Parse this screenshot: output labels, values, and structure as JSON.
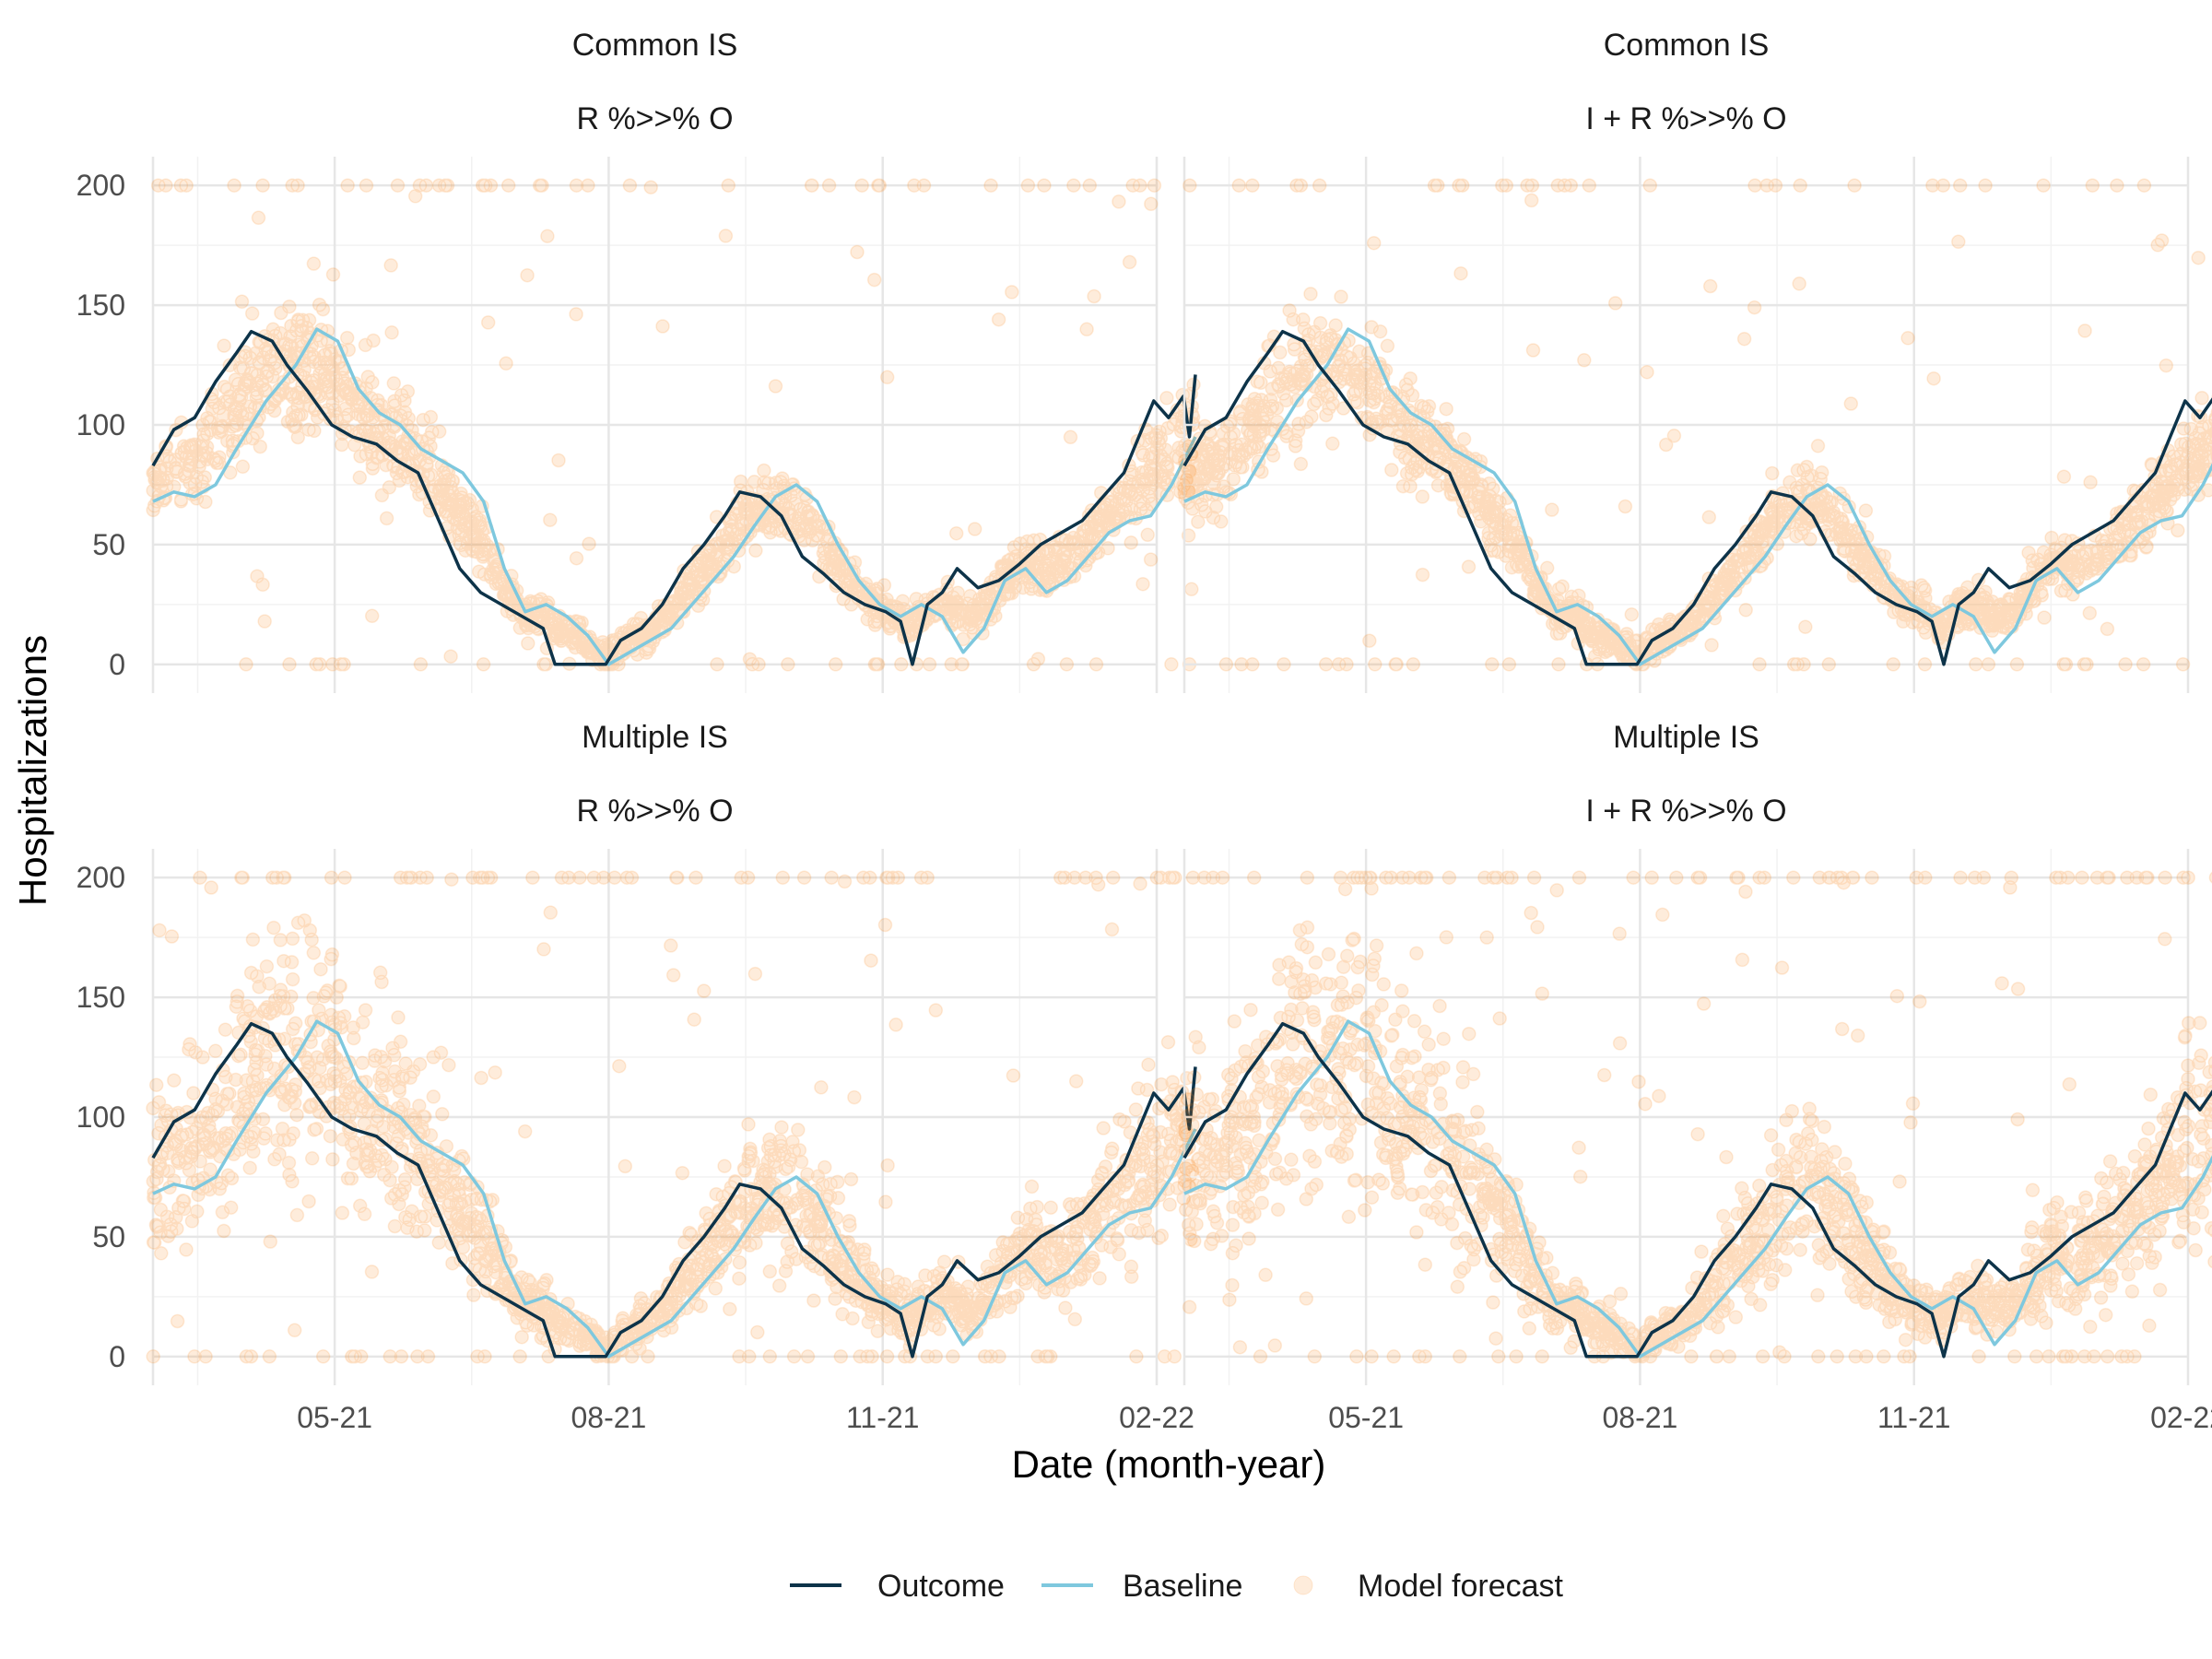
{
  "chart_data": {
    "type": "line",
    "x_axis": {
      "label": "Date (month-year)",
      "range": [
        "2021-03-01",
        "2022-02-01"
      ],
      "ticks": [
        {
          "date": "2021-05-01",
          "label": "05-21"
        },
        {
          "date": "2021-08-01",
          "label": "08-21"
        },
        {
          "date": "2021-11-01",
          "label": "11-21"
        },
        {
          "date": "2022-02-01",
          "label": "02-22"
        }
      ]
    },
    "y_axis": {
      "label": "Hospitalizations",
      "range": [
        -12,
        212
      ],
      "ticks": [
        0,
        50,
        100,
        150,
        200
      ]
    },
    "grid": true,
    "legend": {
      "position": "bottom",
      "items": [
        {
          "label": "Outcome",
          "kind": "line",
          "color": "#0d3349"
        },
        {
          "label": "Baseline",
          "kind": "line",
          "color": "#7ec8de"
        },
        {
          "label": "Model forecast",
          "kind": "point",
          "color": "#f5820b"
        }
      ]
    },
    "panels": [
      {
        "row": 0,
        "col": 0,
        "title_line1": "Common IS",
        "title_line2": "R %>>% O",
        "variant": "common_r"
      },
      {
        "row": 0,
        "col": 1,
        "title_line1": "Common IS",
        "title_line2": "I + R %>>% O",
        "variant": "common_ir"
      },
      {
        "row": 1,
        "col": 0,
        "title_line1": "Multiple IS",
        "title_line2": "R %>>% O",
        "variant": "multiple_r"
      },
      {
        "row": 1,
        "col": 1,
        "title_line1": "Multiple IS",
        "title_line2": "I + R %>>% O",
        "variant": "multiple_ir"
      }
    ],
    "series": [
      {
        "name": "Outcome",
        "color": "#0d3349",
        "points": [
          [
            "2021-03-01",
            83
          ],
          [
            "2021-03-08",
            98
          ],
          [
            "2021-03-15",
            103
          ],
          [
            "2021-03-22",
            118
          ],
          [
            "2021-03-29",
            130
          ],
          [
            "2021-04-03",
            139
          ],
          [
            "2021-04-10",
            135
          ],
          [
            "2021-04-15",
            125
          ],
          [
            "2021-04-22",
            114
          ],
          [
            "2021-04-30",
            100
          ],
          [
            "2021-05-07",
            95
          ],
          [
            "2021-05-15",
            92
          ],
          [
            "2021-05-22",
            85
          ],
          [
            "2021-05-29",
            80
          ],
          [
            "2021-06-05",
            60
          ],
          [
            "2021-06-12",
            40
          ],
          [
            "2021-06-19",
            30
          ],
          [
            "2021-06-26",
            25
          ],
          [
            "2021-07-03",
            20
          ],
          [
            "2021-07-10",
            15
          ],
          [
            "2021-07-14",
            0
          ],
          [
            "2021-07-20",
            0
          ],
          [
            "2021-07-31",
            0
          ],
          [
            "2021-08-05",
            10
          ],
          [
            "2021-08-12",
            15
          ],
          [
            "2021-08-19",
            25
          ],
          [
            "2021-08-26",
            40
          ],
          [
            "2021-09-02",
            50
          ],
          [
            "2021-09-09",
            62
          ],
          [
            "2021-09-14",
            72
          ],
          [
            "2021-09-21",
            70
          ],
          [
            "2021-09-28",
            62
          ],
          [
            "2021-10-05",
            45
          ],
          [
            "2021-10-12",
            38
          ],
          [
            "2021-10-19",
            30
          ],
          [
            "2021-10-26",
            25
          ],
          [
            "2021-11-02",
            22
          ],
          [
            "2021-11-07",
            18
          ],
          [
            "2021-11-11",
            0
          ],
          [
            "2021-11-16",
            25
          ],
          [
            "2021-11-21",
            30
          ],
          [
            "2021-11-26",
            40
          ],
          [
            "2021-12-03",
            32
          ],
          [
            "2021-12-10",
            35
          ],
          [
            "2021-12-17",
            42
          ],
          [
            "2021-12-24",
            50
          ],
          [
            "2021-12-31",
            55
          ],
          [
            "2022-01-07",
            60
          ],
          [
            "2022-01-14",
            70
          ],
          [
            "2022-01-21",
            80
          ],
          [
            "2022-01-26",
            95
          ],
          [
            "2022-01-31",
            110
          ],
          [
            "2022-02-05",
            103
          ],
          [
            "2022-02-10",
            112
          ],
          [
            "2022-02-12",
            95
          ],
          [
            "2022-02-14",
            121
          ]
        ]
      },
      {
        "name": "Baseline",
        "color": "#7ec8de",
        "points": [
          [
            "2021-03-01",
            68
          ],
          [
            "2021-03-08",
            72
          ],
          [
            "2021-03-15",
            70
          ],
          [
            "2021-03-22",
            75
          ],
          [
            "2021-03-29",
            90
          ],
          [
            "2021-04-08",
            110
          ],
          [
            "2021-04-18",
            125
          ],
          [
            "2021-04-25",
            140
          ],
          [
            "2021-05-02",
            135
          ],
          [
            "2021-05-09",
            115
          ],
          [
            "2021-05-16",
            105
          ],
          [
            "2021-05-23",
            100
          ],
          [
            "2021-05-30",
            90
          ],
          [
            "2021-06-06",
            85
          ],
          [
            "2021-06-13",
            80
          ],
          [
            "2021-06-20",
            68
          ],
          [
            "2021-06-27",
            40
          ],
          [
            "2021-07-04",
            22
          ],
          [
            "2021-07-11",
            25
          ],
          [
            "2021-07-18",
            20
          ],
          [
            "2021-07-25",
            12
          ],
          [
            "2021-08-01",
            0
          ],
          [
            "2021-08-08",
            5
          ],
          [
            "2021-08-15",
            10
          ],
          [
            "2021-08-22",
            15
          ],
          [
            "2021-08-29",
            25
          ],
          [
            "2021-09-05",
            35
          ],
          [
            "2021-09-12",
            45
          ],
          [
            "2021-09-19",
            58
          ],
          [
            "2021-09-26",
            70
          ],
          [
            "2021-10-03",
            75
          ],
          [
            "2021-10-10",
            68
          ],
          [
            "2021-10-17",
            50
          ],
          [
            "2021-10-24",
            35
          ],
          [
            "2021-10-31",
            25
          ],
          [
            "2021-11-07",
            20
          ],
          [
            "2021-11-14",
            25
          ],
          [
            "2021-11-21",
            20
          ],
          [
            "2021-11-28",
            5
          ],
          [
            "2021-12-05",
            15
          ],
          [
            "2021-12-12",
            35
          ],
          [
            "2021-12-19",
            40
          ],
          [
            "2021-12-26",
            30
          ],
          [
            "2022-01-02",
            35
          ],
          [
            "2022-01-09",
            45
          ],
          [
            "2022-01-16",
            55
          ],
          [
            "2022-01-23",
            60
          ],
          [
            "2022-01-30",
            62
          ],
          [
            "2022-02-06",
            75
          ],
          [
            "2022-02-14",
            95
          ]
        ]
      }
    ],
    "forecast_points": {
      "name": "Model forecast",
      "color": "#f5820b",
      "opacity": 0.15,
      "clip_min": 0,
      "clip_max": 200,
      "count_per_panel": 2000
    }
  }
}
